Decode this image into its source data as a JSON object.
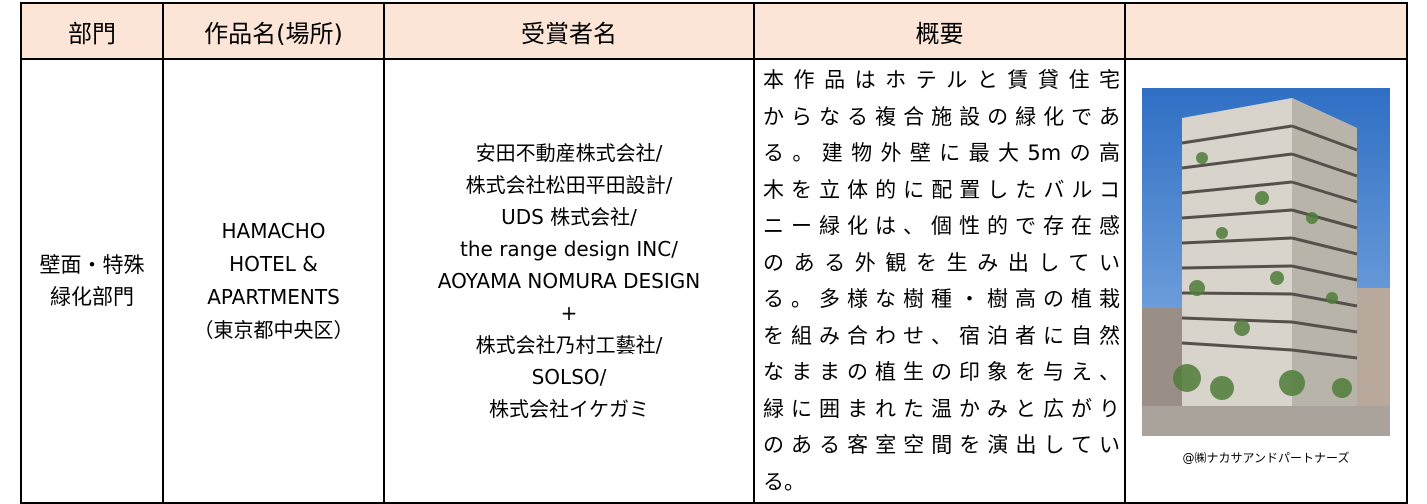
{
  "table": {
    "header": [
      "部門",
      "作品名(場所)",
      "受賞者名",
      "概要"
    ],
    "row": {
      "division": [
        "壁面・特殊",
        "緑化部門"
      ],
      "work": [
        "HAMACHO",
        "HOTEL &",
        "APARTMENTS",
        "（東京都中央区）"
      ],
      "recipients": [
        "安田不動産株式会社/",
        "株式会社松田平田設計/",
        "UDS 株式会社/",
        "the range design INC/",
        "AOYAMA NOMURA DESIGN",
        "+",
        "株式会社乃村工藝社/",
        "SOLSO/",
        "株式会社イケガミ"
      ],
      "summary": [
        "本作品はホテルと賃貸住宅",
        "からなる複合施設の緑化であ",
        "る。建物外壁に最大5mの高",
        "木を立体的に配置したバルコ",
        "ニー緑化は、個性的で存在感",
        "のある外観を生み出してい",
        "る。多様な樹種・樹高の植栽",
        "を組み合わせ、宿泊者に自然",
        "なままの植生の印象を与え、",
        "緑に囲まれた温かみと広がり",
        "のある客室空間を演出してい",
        "る。"
      ],
      "photo_credit": "@㈱ナカサアンドパートナーズ"
    }
  }
}
